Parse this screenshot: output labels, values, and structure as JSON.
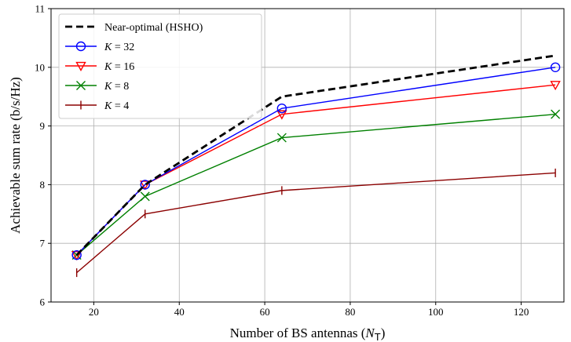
{
  "chart_data": {
    "type": "line",
    "title": "",
    "xlabel": "Number of BS antennas (",
    "xlabel_symbol": "N",
    "xlabel_subscript": "T",
    "xlabel_close": ")",
    "ylabel": "Achievable sum rate (b/s/Hz)",
    "xlim": [
      10,
      130
    ],
    "ylim": [
      6,
      11
    ],
    "xticks": [
      20,
      40,
      60,
      80,
      100,
      120
    ],
    "yticks": [
      6,
      7,
      8,
      9,
      10,
      11
    ],
    "grid": true,
    "legend_position": "top-left",
    "x": [
      16,
      32,
      64,
      128
    ],
    "series": [
      {
        "name": "Near-optimal (HSHO)",
        "name_var": "",
        "name_rest": "",
        "color": "#000000",
        "marker": "none",
        "dash": true,
        "values": [
          6.8,
          8.0,
          9.5,
          10.2
        ]
      },
      {
        "name": "",
        "name_var": "K",
        "name_rest": " = 32",
        "color": "#0000ff",
        "marker": "circle",
        "dash": false,
        "values": [
          6.8,
          8.0,
          9.3,
          10.0
        ]
      },
      {
        "name": "",
        "name_var": "K",
        "name_rest": " = 16",
        "color": "#ff0000",
        "marker": "triangle-down",
        "dash": false,
        "values": [
          6.8,
          8.0,
          9.2,
          9.7
        ]
      },
      {
        "name": "",
        "name_var": "K",
        "name_rest": " = 8",
        "color": "#008000",
        "marker": "x",
        "dash": false,
        "values": [
          6.8,
          7.8,
          8.8,
          9.2
        ]
      },
      {
        "name": "",
        "name_var": "K",
        "name_rest": " = 4",
        "color": "#8b0000",
        "marker": "vline",
        "dash": false,
        "values": [
          6.5,
          7.5,
          7.9,
          8.2
        ]
      }
    ]
  }
}
